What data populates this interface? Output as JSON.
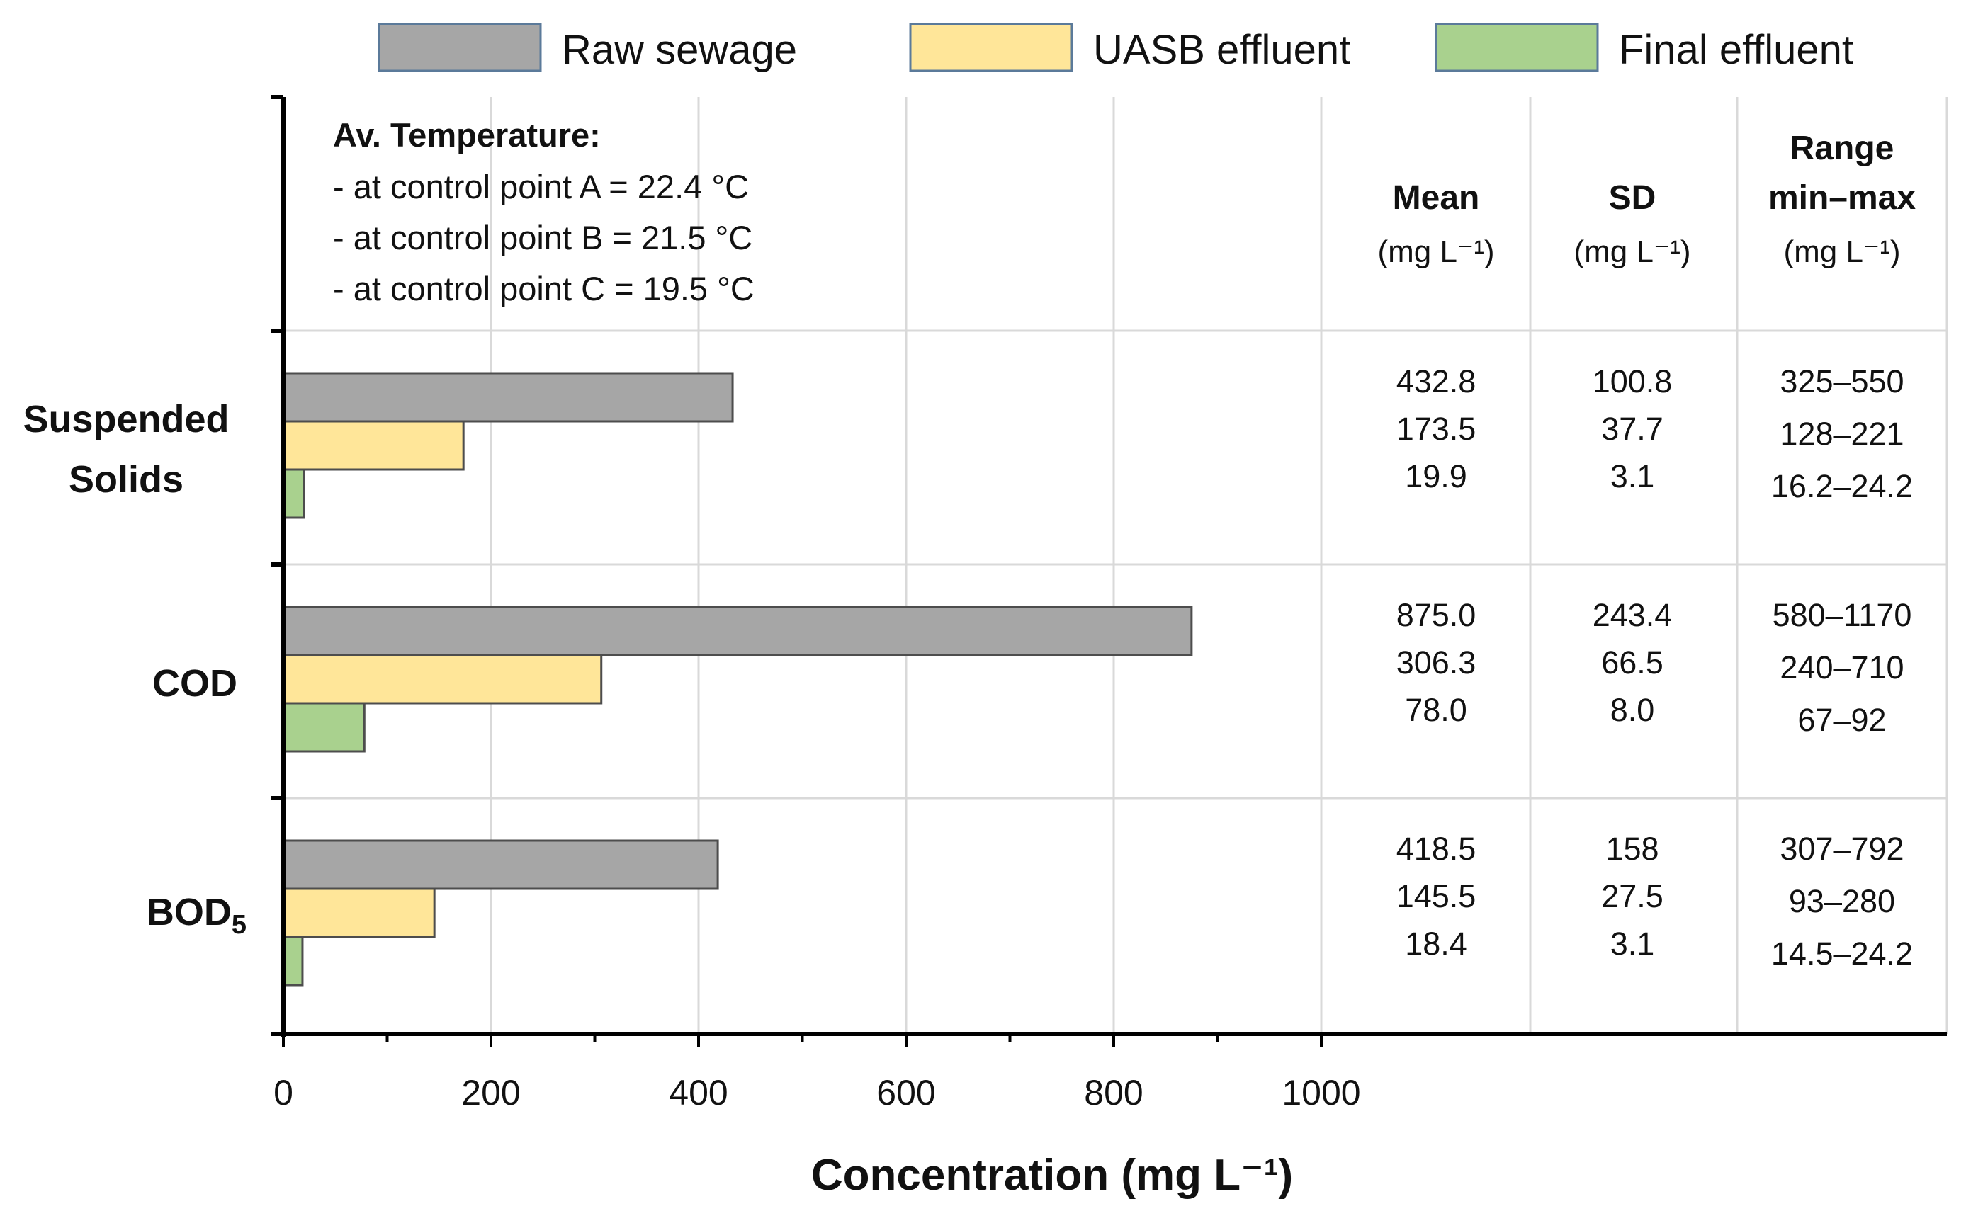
{
  "chart_data": {
    "type": "bar",
    "orientation": "horizontal",
    "categories": [
      "Suspended Solids",
      "COD",
      "BOD5"
    ],
    "category_labels": [
      [
        "Suspended",
        "Solids"
      ],
      [
        "COD"
      ],
      [
        "BOD",
        "5"
      ]
    ],
    "series": [
      {
        "name": "Raw sewage",
        "color": "#a6a6a6",
        "values": [
          432.8,
          875.0,
          418.5
        ]
      },
      {
        "name": "UASB effluent",
        "color": "#ffe699",
        "values": [
          173.5,
          306.3,
          145.5
        ]
      },
      {
        "name": "Final effluent",
        "color": "#a9d18e",
        "values": [
          19.9,
          78.0,
          18.4
        ]
      }
    ],
    "xlabel": "Concentration  (mg L⁻¹)",
    "xlim": [
      0,
      1000
    ],
    "x_ticks": [
      "0",
      "200",
      "400",
      "600",
      "800",
      "1000"
    ],
    "grid": true,
    "legend_position": "top"
  },
  "annotation": {
    "title": "Av. Temperature:",
    "lines": [
      "- at control point A = 22.4 °C",
      "- at control point B = 21.5 °C",
      "- at control point C = 19.5 °C"
    ]
  },
  "table": {
    "columns": [
      {
        "title": [
          "Mean"
        ],
        "unit": "(mg L⁻¹)"
      },
      {
        "title": [
          "SD"
        ],
        "unit": "(mg L⁻¹)"
      },
      {
        "title": [
          "Range",
          "min–max"
        ],
        "unit": "(mg L⁻¹)"
      }
    ],
    "rows": [
      [
        [
          "432.8",
          "173.5",
          "19.9"
        ],
        [
          "100.8",
          "37.7",
          "3.1"
        ],
        [
          "325–550",
          "128–221",
          "16.2–24.2"
        ]
      ],
      [
        [
          "875.0",
          "306.3",
          "78.0"
        ],
        [
          "243.4",
          "66.5",
          "8.0"
        ],
        [
          "580–1170",
          "240–710",
          "67–92"
        ]
      ],
      [
        [
          "418.5",
          "145.5",
          "18.4"
        ],
        [
          "158",
          "27.5",
          "3.1"
        ],
        [
          "307–792",
          "93–280",
          "14.5–24.2"
        ]
      ]
    ]
  }
}
